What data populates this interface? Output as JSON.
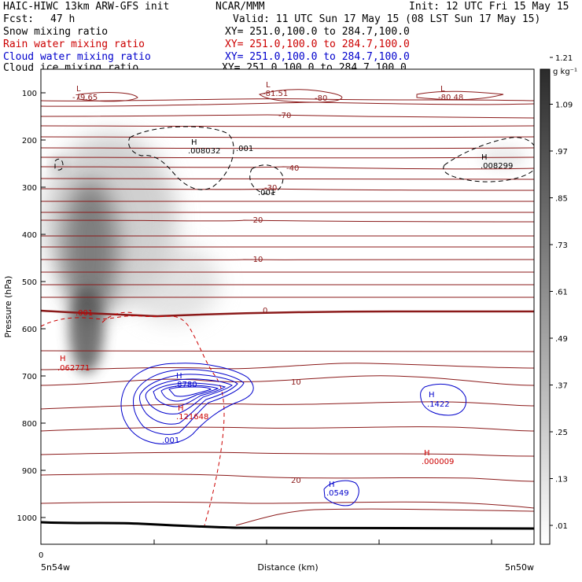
{
  "header": {
    "model": "HAIC-HIWC 13km ARW-GFS init",
    "org": "NCAR/MMM",
    "init": "Init: 12 UTC Fri 15 May 15",
    "fcst_label": "Fcst:",
    "fcst_value": "47 h",
    "valid": "Valid: 11 UTC Sun 17 May 15 (08 LST Sun 17 May 15)"
  },
  "fields": [
    {
      "name": "Snow mixing ratio",
      "xy": "XY= 251.0,100.0 to 284.7,100.0",
      "color": "#000000"
    },
    {
      "name": "Rain water mixing ratio",
      "xy": "XY= 251.0,100.0 to 284.7,100.0",
      "color": "#cc0000"
    },
    {
      "name": "Cloud water mixing ratio",
      "xy": "XY= 251.0,100.0 to 284.7,100.0",
      "color": "#0000cc"
    },
    {
      "name": "Cloud ice mixing ratio",
      "xy": "XY= 251.0,100.0 to 284.7,100.0",
      "color": "#000000"
    }
  ],
  "chart_data": {
    "type": "cross-section contour",
    "ylabel": "Pressure (hPa)",
    "xlabel": "Distance (km)",
    "x_start_label": "5n54w",
    "x_end_label": "5n50w",
    "x_zero_label": "0",
    "y_scale": "pressure (inverted)",
    "ylim": [
      1050,
      50
    ],
    "yticks": [
      100,
      200,
      300,
      400,
      500,
      600,
      700,
      800,
      900,
      1000
    ],
    "colorbar": {
      "unit": "g kg⁻¹",
      "ticks": [
        ".01",
        ".13",
        ".25",
        ".37",
        ".49",
        ".61",
        ".73",
        ".85",
        ".97",
        "1.09",
        "1.21"
      ],
      "color_low": "#ffffff",
      "color_high": "#2b2b2b"
    },
    "temperature_contours": {
      "color": "#8b1a1a",
      "labels": [
        "-80",
        "-70",
        "-40",
        "-30",
        "-20",
        "-10",
        "0",
        "10",
        "20"
      ]
    },
    "extrema": [
      {
        "kind": "L",
        "value": "-79.65",
        "color": "#8b1a1a"
      },
      {
        "kind": "L",
        "value": "-81.51",
        "color": "#8b1a1a"
      },
      {
        "kind": "L",
        "value": "-80.48",
        "color": "#8b1a1a"
      },
      {
        "kind": "H",
        "value": ".008032",
        "color": "#000000"
      },
      {
        "kind": "H",
        "value": ".008299",
        "color": "#000000"
      },
      {
        "kind": "H",
        "value": ".062771",
        "color": "#cc0000"
      },
      {
        "kind": "H",
        "value": ".8780",
        "color": "#0000cc"
      },
      {
        "kind": "H",
        "value": ".121648",
        "color": "#cc0000"
      },
      {
        "kind": "H",
        "value": ".1422",
        "color": "#0000cc"
      },
      {
        "kind": "H",
        "value": ".000009",
        "color": "#cc0000"
      },
      {
        "kind": "H",
        "value": ".0549",
        "color": "#0000cc"
      }
    ],
    "contour_labels": [
      {
        "value": ".001",
        "color": "#000000"
      },
      {
        "value": ".001",
        "color": "#000000"
      },
      {
        "value": ".001",
        "color": "#cc0000"
      },
      {
        "value": ".001",
        "color": "#0000cc"
      }
    ]
  }
}
